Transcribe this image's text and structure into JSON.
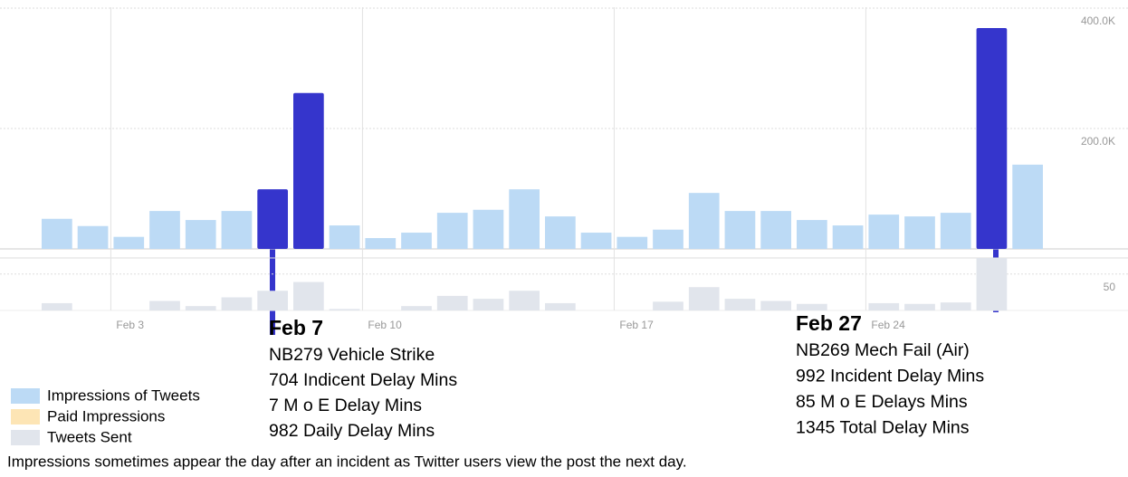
{
  "chart_data": [
    {
      "type": "bar",
      "series": [
        {
          "name": "Impressions of Tweets",
          "color": "#bcdaf5",
          "values": [
            50000,
            38000,
            20000,
            63000,
            48000,
            63000,
            99000,
            259000,
            39000,
            18000,
            27000,
            60000,
            65000,
            99000,
            54000,
            27000,
            20000,
            32000,
            93000,
            63000,
            63000,
            48000,
            39000,
            57000,
            54000,
            60000,
            367000,
            140000
          ]
        }
      ],
      "x": [
        1,
        2,
        3,
        4,
        5,
        6,
        7,
        8,
        9,
        10,
        11,
        12,
        13,
        14,
        15,
        16,
        17,
        18,
        19,
        20,
        21,
        22,
        23,
        24,
        25,
        26,
        27,
        28
      ],
      "xlim": [
        1,
        29
      ],
      "xticks": [
        {
          "value": 3,
          "label": "Feb 3"
        },
        {
          "value": 10,
          "label": "Feb 10"
        },
        {
          "value": 17,
          "label": "Feb 17"
        },
        {
          "value": 24,
          "label": "Feb 24"
        }
      ],
      "ylim": [
        0,
        400000
      ],
      "yticks": [
        {
          "value": 200000,
          "label": "200.0K"
        },
        {
          "value": 400000,
          "label": "400.0K"
        }
      ],
      "highlight": {
        "color": "#3535cc",
        "x": [
          7,
          8,
          27
        ]
      },
      "grid": true
    },
    {
      "type": "bar",
      "series": [
        {
          "name": "Tweets Sent",
          "color": "#e1e5ec",
          "values": [
            10,
            0,
            0,
            13,
            6,
            18,
            27,
            39,
            2,
            0,
            6,
            20,
            16,
            27,
            10,
            0,
            0,
            12,
            32,
            16,
            13,
            9,
            0,
            10,
            9,
            11,
            72,
            0
          ]
        }
      ],
      "ylim": [
        0,
        72
      ],
      "yticks": [
        50
      ],
      "grid": true
    }
  ],
  "legend": [
    {
      "name": "Impressions of Tweets",
      "color": "#bcdaf5"
    },
    {
      "name": "Paid Impressions",
      "color": "#fde5b5"
    },
    {
      "name": "Tweets Sent",
      "color": "#e1e5ec"
    }
  ],
  "annotations": [
    {
      "title": "Feb 7",
      "lines": [
        "NB279 Vehicle Strike",
        "704 Indicent Delay Mins",
        "7 M o E Delay Mins",
        "982 Daily Delay Mins"
      ]
    },
    {
      "title": "Feb 27",
      "lines": [
        "NB269 Mech Fail (Air)",
        "992 Incident Delay Mins",
        "85 M o E Delays Mins",
        "1345 Total Delay Mins"
      ]
    }
  ],
  "footnote": "Impressions sometimes appear the day after an incident as Twitter users view the post the next day."
}
